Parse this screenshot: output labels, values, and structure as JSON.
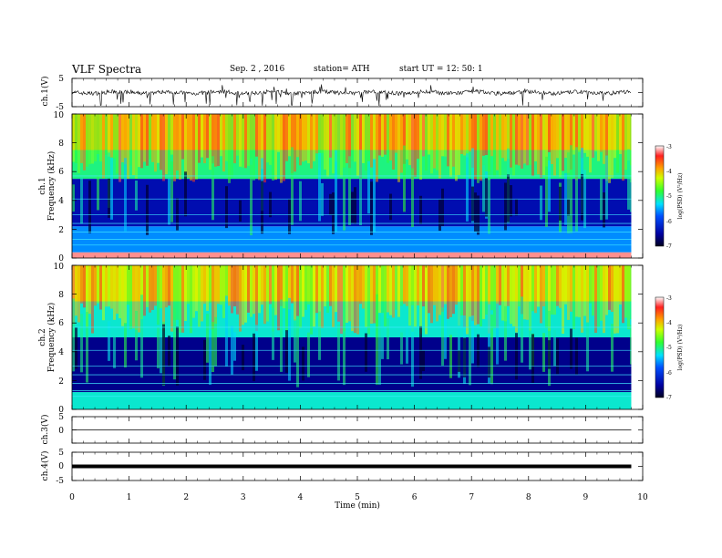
{
  "header": {
    "title": "VLF  Spectra",
    "date": "Sep. 2  , 2016",
    "station": "station= ATH",
    "start": "start  UT  =    12: 50: 1"
  },
  "chart_data": [
    {
      "type": "line",
      "panel": "ch1-waveform",
      "ylabel": "ch.1(V)",
      "ylim": [
        -5,
        5
      ],
      "yticks": [
        "5",
        "0",
        "-5"
      ],
      "description_values": {
        "baseline": 0,
        "min": -4.8,
        "max": 3.0
      }
    },
    {
      "type": "heatmap",
      "panel": "ch1-spectrogram",
      "ylabel_lines": [
        "ch.1",
        "Frequency  (kHz)"
      ],
      "ylim": [
        0,
        10
      ],
      "yticks": [
        "0",
        "2",
        "4",
        "6",
        "8",
        "10"
      ],
      "colorbar": {
        "label": "log(PSD) (V²/Hz)",
        "ticks": [
          "-3",
          "-4",
          "-5",
          "-6",
          "-7"
        ],
        "range": [
          -7,
          -3
        ]
      },
      "bands_khz": [
        {
          "from": 0,
          "to": 0.4,
          "logpsd": -3.2
        },
        {
          "from": 0.4,
          "to": 2.2,
          "logpsd": -5.6
        },
        {
          "from": 2.2,
          "to": 5.5,
          "logpsd": -6.4
        },
        {
          "from": 5.5,
          "to": 7.5,
          "logpsd": -5.0
        },
        {
          "from": 7.5,
          "to": 10,
          "logpsd": -4.0
        }
      ]
    },
    {
      "type": "heatmap",
      "panel": "ch2-spectrogram",
      "ylabel_lines": [
        "ch.2",
        "Frequency  (kHz)"
      ],
      "ylim": [
        0,
        10
      ],
      "yticks": [
        "0",
        "2",
        "4",
        "6",
        "8",
        "10"
      ],
      "colorbar": {
        "label": "log(PSD) (V²/Hz)",
        "ticks": [
          "-3",
          "-4",
          "-5",
          "-6",
          "-7"
        ],
        "range": [
          -7,
          -3
        ]
      },
      "bands_khz": [
        {
          "from": 0,
          "to": 1.2,
          "logpsd": -5.2
        },
        {
          "from": 1.2,
          "to": 5.0,
          "logpsd": -6.6
        },
        {
          "from": 5.0,
          "to": 7.5,
          "logpsd": -5.2
        },
        {
          "from": 7.5,
          "to": 10,
          "logpsd": -4.2
        }
      ]
    },
    {
      "type": "line",
      "panel": "ch3-waveform",
      "ylabel": "ch.3(V)",
      "ylim": [
        -5,
        5
      ],
      "yticks": [
        "5",
        "0"
      ],
      "description_values": {
        "baseline": 0
      }
    },
    {
      "type": "line",
      "panel": "ch4-waveform",
      "ylabel": "ch.4(V)",
      "ylim": [
        -5,
        5
      ],
      "yticks": [
        "5",
        "0",
        "-5"
      ],
      "description_values": {
        "baseline": 0
      }
    }
  ],
  "time_axis": {
    "xlabel": "Time  (min)",
    "xlim": [
      0,
      10
    ],
    "ticks": [
      "0",
      "1",
      "2",
      "3",
      "4",
      "5",
      "6",
      "7",
      "8",
      "9",
      "10"
    ],
    "data_end_min": 9.8
  }
}
